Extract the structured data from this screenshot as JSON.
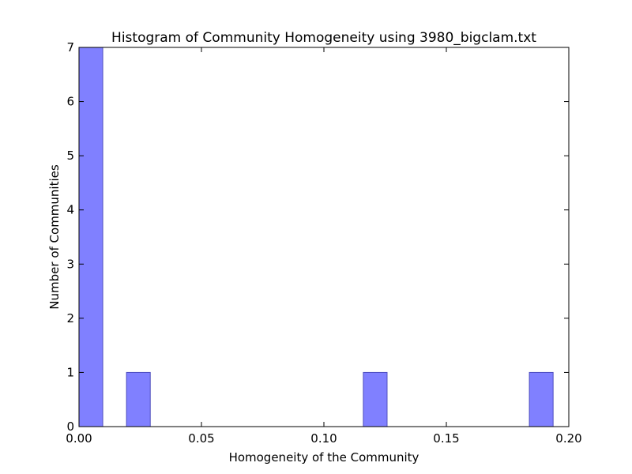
{
  "chart_data": {
    "type": "bar",
    "title": "Histogram of Community Homogeneity using 3980_bigclam.txt",
    "xlabel": "Homogeneity of the Community",
    "ylabel": "Number of Communities",
    "xlim": [
      0,
      0.2
    ],
    "ylim": [
      0,
      7
    ],
    "xticks": [
      "0.00",
      "0.05",
      "0.10",
      "0.15",
      "0.20"
    ],
    "yticks": [
      "0",
      "1",
      "2",
      "3",
      "4",
      "5",
      "6",
      "7"
    ],
    "grid": false,
    "bar_color": "#8080ff",
    "bar_edge_color": "#4d4dbf",
    "bins": [
      {
        "x0": 0.0,
        "x1": 0.0097,
        "count": 7
      },
      {
        "x0": 0.0194,
        "x1": 0.0291,
        "count": 1
      },
      {
        "x0": 0.1161,
        "x1": 0.1258,
        "count": 1
      },
      {
        "x0": 0.1839,
        "x1": 0.1936,
        "count": 1
      }
    ]
  }
}
